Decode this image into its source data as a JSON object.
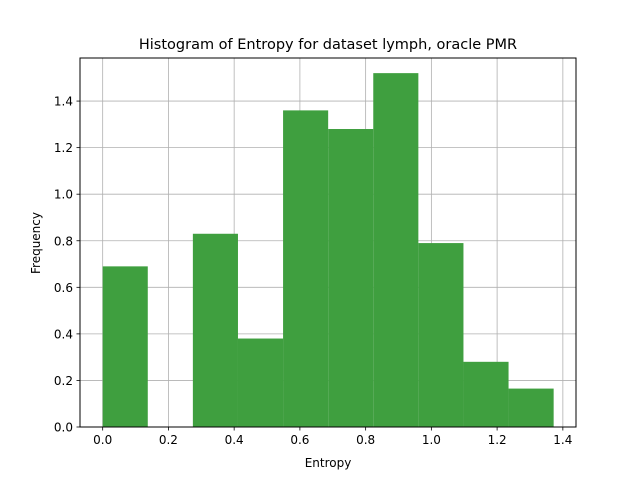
{
  "chart_data": {
    "type": "bar",
    "title": "Histogram of Entropy for dataset lymph, oracle PMR",
    "xlabel": "Entropy",
    "ylabel": "Frequency",
    "xlim": [
      -0.069,
      1.44
    ],
    "ylim": [
      0,
      1.585
    ],
    "grid": true,
    "bar_color": "#3f9f3f",
    "bins": [
      {
        "x0": 0.0,
        "x1": 0.1372,
        "value": 0.69
      },
      {
        "x0": 0.1372,
        "x1": 0.2744,
        "value": 0.0
      },
      {
        "x0": 0.2744,
        "x1": 0.4116,
        "value": 0.83
      },
      {
        "x0": 0.4116,
        "x1": 0.5488,
        "value": 0.38
      },
      {
        "x0": 0.5488,
        "x1": 0.686,
        "value": 1.36
      },
      {
        "x0": 0.686,
        "x1": 0.8232,
        "value": 1.28
      },
      {
        "x0": 0.8232,
        "x1": 0.9604,
        "value": 1.52
      },
      {
        "x0": 0.9604,
        "x1": 1.0976,
        "value": 0.79
      },
      {
        "x0": 1.0976,
        "x1": 1.2348,
        "value": 0.28
      },
      {
        "x0": 1.2348,
        "x1": 1.372,
        "value": 0.165
      }
    ],
    "xticks": [
      {
        "value": 0.0,
        "label": "0.0"
      },
      {
        "value": 0.2,
        "label": "0.2"
      },
      {
        "value": 0.4,
        "label": "0.4"
      },
      {
        "value": 0.6,
        "label": "0.6"
      },
      {
        "value": 0.8,
        "label": "0.8"
      },
      {
        "value": 1.0,
        "label": "1.0"
      },
      {
        "value": 1.2,
        "label": "1.2"
      },
      {
        "value": 1.4,
        "label": "1.4"
      }
    ],
    "yticks": [
      {
        "value": 0.0,
        "label": "0.0"
      },
      {
        "value": 0.2,
        "label": "0.2"
      },
      {
        "value": 0.4,
        "label": "0.4"
      },
      {
        "value": 0.6,
        "label": "0.6"
      },
      {
        "value": 0.8,
        "label": "0.8"
      },
      {
        "value": 1.0,
        "label": "1.0"
      },
      {
        "value": 1.2,
        "label": "1.2"
      },
      {
        "value": 1.4,
        "label": "1.4"
      }
    ]
  }
}
